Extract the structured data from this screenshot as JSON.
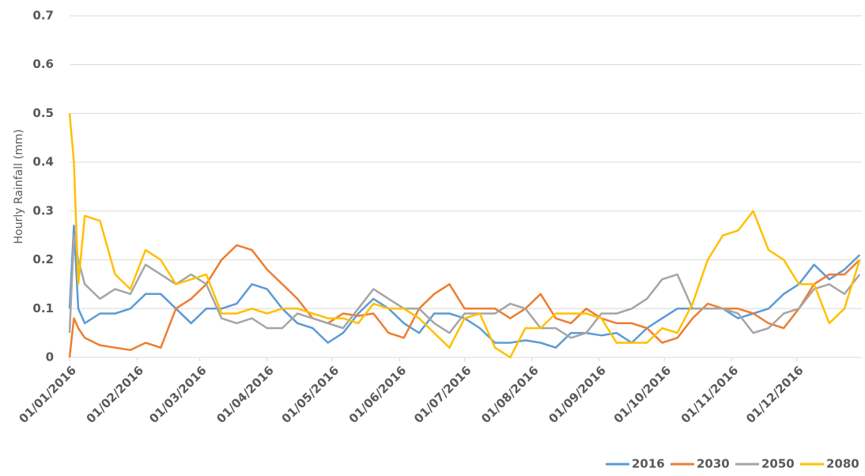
{
  "chart_data": {
    "type": "line",
    "ylabel": "Hourly Rainfall (mm)",
    "x": [
      0,
      2,
      4,
      7,
      14,
      21,
      28,
      35,
      42,
      49,
      56,
      63,
      70,
      77,
      84,
      91,
      98,
      105,
      112,
      119,
      126,
      133,
      140,
      147,
      154,
      161,
      168,
      175,
      182,
      189,
      196,
      203,
      210,
      217,
      224,
      231,
      238,
      245,
      252,
      259,
      266,
      273,
      280,
      287,
      294,
      301,
      308,
      315,
      322,
      329,
      336,
      343,
      350,
      357,
      364
    ],
    "xlim": [
      0,
      365
    ],
    "xticks": [
      {
        "value": 0,
        "label": "01/01/2016"
      },
      {
        "value": 31,
        "label": "01/02/2016"
      },
      {
        "value": 60,
        "label": "01/03/2016"
      },
      {
        "value": 91,
        "label": "01/04/2016"
      },
      {
        "value": 121,
        "label": "01/05/2016"
      },
      {
        "value": 152,
        "label": "01/06/2016"
      },
      {
        "value": 182,
        "label": "01/07/2016"
      },
      {
        "value": 213,
        "label": "01/08/2016"
      },
      {
        "value": 244,
        "label": "01/09/2016"
      },
      {
        "value": 274,
        "label": "01/10/2016"
      },
      {
        "value": 305,
        "label": "01/11/2016"
      },
      {
        "value": 335,
        "label": "01/12/2016"
      }
    ],
    "ylim": [
      0,
      0.7
    ],
    "yticks": [
      0,
      0.1,
      0.2,
      0.3,
      0.4,
      0.5,
      0.6,
      0.7
    ],
    "grid": true,
    "legend": "bottom-right",
    "series": [
      {
        "name": "2016",
        "color": "#5b9bd5",
        "values": [
          0.1,
          0.27,
          0.1,
          0.07,
          0.09,
          0.09,
          0.1,
          0.13,
          0.13,
          0.1,
          0.07,
          0.1,
          0.1,
          0.11,
          0.15,
          0.14,
          0.1,
          0.07,
          0.06,
          0.03,
          0.05,
          0.09,
          0.12,
          0.1,
          0.07,
          0.05,
          0.09,
          0.09,
          0.08,
          0.06,
          0.03,
          0.03,
          0.035,
          0.03,
          0.02,
          0.05,
          0.05,
          0.045,
          0.05,
          0.03,
          0.06,
          0.08,
          0.1,
          0.1,
          0.1,
          0.1,
          0.08,
          0.09,
          0.1,
          0.13,
          0.15,
          0.19,
          0.16,
          0.18,
          0.21
        ]
      },
      {
        "name": "2030",
        "color": "#ed7d31",
        "values": [
          0,
          0.08,
          0.06,
          0.04,
          0.025,
          0.02,
          0.015,
          0.03,
          0.02,
          0.1,
          0.12,
          0.15,
          0.2,
          0.23,
          0.22,
          0.18,
          0.15,
          0.12,
          0.08,
          0.07,
          0.09,
          0.085,
          0.09,
          0.05,
          0.04,
          0.1,
          0.13,
          0.15,
          0.1,
          0.1,
          0.1,
          0.08,
          0.1,
          0.13,
          0.08,
          0.07,
          0.1,
          0.08,
          0.07,
          0.07,
          0.06,
          0.03,
          0.04,
          0.08,
          0.11,
          0.1,
          0.1,
          0.09,
          0.07,
          0.06,
          0.1,
          0.15,
          0.17,
          0.17,
          0.2
        ]
      },
      {
        "name": "2050",
        "color": "#a5a5a5",
        "values": [
          0.05,
          0.25,
          0.2,
          0.15,
          0.12,
          0.14,
          0.13,
          0.19,
          0.17,
          0.15,
          0.17,
          0.15,
          0.08,
          0.07,
          0.08,
          0.06,
          0.06,
          0.09,
          0.08,
          0.07,
          0.06,
          0.1,
          0.14,
          0.12,
          0.1,
          0.1,
          0.07,
          0.05,
          0.09,
          0.09,
          0.09,
          0.11,
          0.1,
          0.06,
          0.06,
          0.04,
          0.05,
          0.09,
          0.09,
          0.1,
          0.12,
          0.16,
          0.17,
          0.1,
          0.1,
          0.1,
          0.09,
          0.05,
          0.06,
          0.09,
          0.1,
          0.14,
          0.15,
          0.13,
          0.17
        ]
      },
      {
        "name": "2080",
        "color": "#ffc000",
        "values": [
          0.5,
          0.4,
          0.15,
          0.29,
          0.28,
          0.17,
          0.14,
          0.22,
          0.2,
          0.15,
          0.16,
          0.17,
          0.09,
          0.09,
          0.1,
          0.09,
          0.1,
          0.1,
          0.09,
          0.08,
          0.08,
          0.07,
          0.11,
          0.1,
          0.1,
          0.08,
          0.05,
          0.02,
          0.08,
          0.09,
          0.02,
          0,
          0.06,
          0.06,
          0.09,
          0.09,
          0.09,
          0.08,
          0.03,
          0.03,
          0.03,
          0.06,
          0.05,
          0.11,
          0.2,
          0.25,
          0.26,
          0.3,
          0.22,
          0.2,
          0.15,
          0.15,
          0.07,
          0.1,
          0.2
        ]
      }
    ]
  }
}
